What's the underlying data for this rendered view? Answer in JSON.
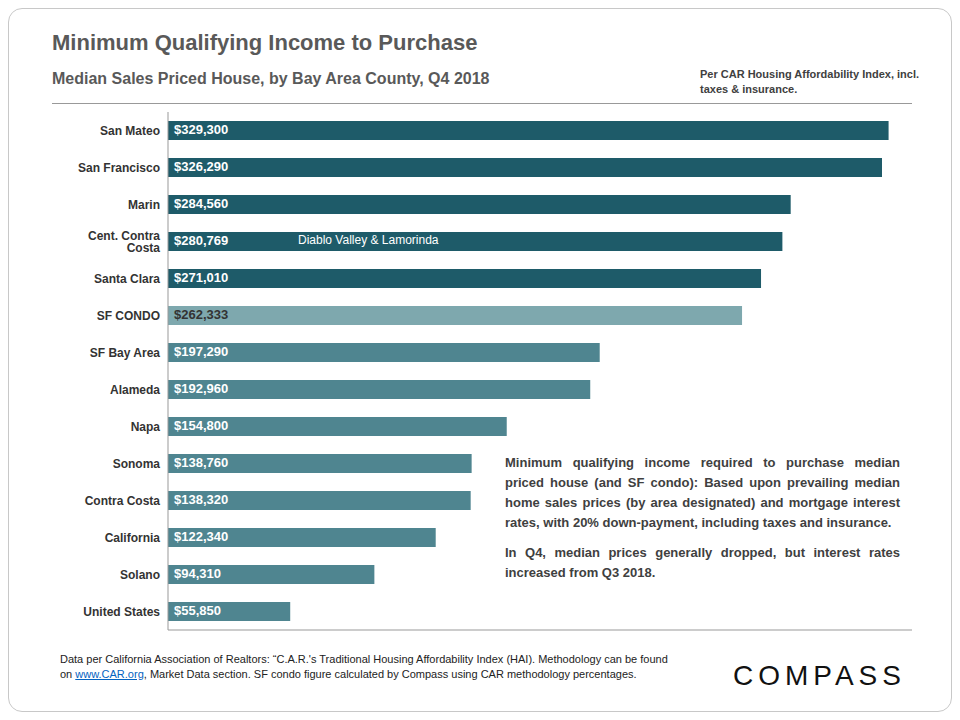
{
  "chart_data": {
    "type": "bar",
    "orientation": "horizontal",
    "title": "Minimum Qualifying Income to Purchase",
    "subtitle": "Median Sales Priced House, by Bay Area County, Q4 2018",
    "header_note": "Per CAR Housing Affordability Index, incl. taxes & insurance.",
    "categories": [
      "San Mateo",
      "San Francisco",
      "Marin",
      "Cent. Contra Costa",
      "Santa Clara",
      "SF CONDO",
      "SF Bay Area",
      "Alameda",
      "Napa",
      "Sonoma",
      "Contra Costa",
      "California",
      "Solano",
      "United States"
    ],
    "values": [
      329300,
      326290,
      284560,
      280769,
      271010,
      262333,
      197290,
      192960,
      154800,
      138760,
      138320,
      122340,
      94310,
      55850
    ],
    "value_labels": [
      "$329,300",
      "$326,290",
      "$284,560",
      "$280,769",
      "$271,010",
      "$262,333",
      "$197,290",
      "$192,960",
      "$154,800",
      "$138,760",
      "$138,320",
      "$122,340",
      "$94,310",
      "$55,850"
    ],
    "colors": [
      "#1e5b69",
      "#1e5b69",
      "#1e5b69",
      "#1e5b69",
      "#1e5b69",
      "#7ea8ae",
      "#4f8590",
      "#4f8590",
      "#4f8590",
      "#4f8590",
      "#4f8590",
      "#4f8590",
      "#4f8590",
      "#4f8590"
    ],
    "xlim": [
      0,
      340000
    ],
    "xticks": [],
    "tick_labels": "y",
    "data_labels": true,
    "grid": false,
    "annotations": [
      {
        "category": "Cent. Contra Costa",
        "text": "Diablo Valley & Lamorinda"
      }
    ],
    "notes": [
      "Minimum qualifying income required to purchase median priced house (and SF condo): Based upon prevailing median home sales prices (by area designated) and mortgage interest rates, with 20% down-payment, including taxes and insurance.",
      "In Q4, median prices generally dropped, but interest rates increased from Q3 2018."
    ],
    "source": "Data per California Association of Realtors: “C.A.R.'s Traditional Housing Affordability Index (HAI). Methodology can be found on www.CAR.org, Market Data section. SF condo figure calculated by Compass using CAR methodology percentages.",
    "logo": "COMPASS"
  }
}
